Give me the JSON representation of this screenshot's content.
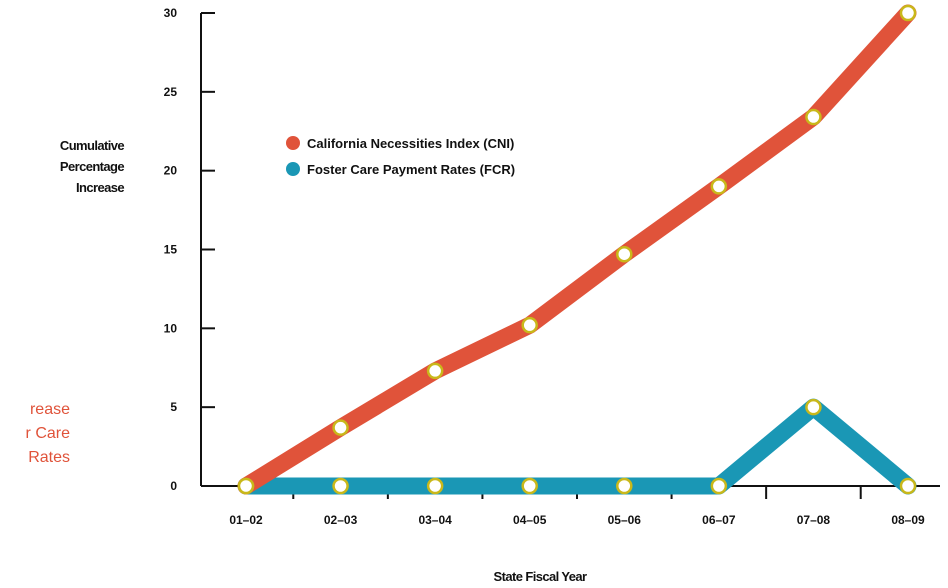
{
  "side_note": {
    "lines": [
      "rease",
      "r Care",
      "Rates"
    ]
  },
  "chart_data": {
    "type": "line",
    "title": "",
    "xlabel": "State Fiscal Year",
    "ylabel_lines": [
      "Cumulative",
      "Percentage",
      "Increase"
    ],
    "categories": [
      "01–02",
      "02–03",
      "03–04",
      "04–05",
      "05–06",
      "06–07",
      "07–08",
      "08–09"
    ],
    "ylim": [
      0,
      30
    ],
    "yticks": [
      0,
      5,
      10,
      15,
      20,
      25,
      30
    ],
    "legend_position": "upper-left-inside",
    "series": [
      {
        "name": "California Necessities Index (CNI)",
        "color": "#e0533a",
        "values": [
          0,
          3.7,
          7.3,
          10.2,
          14.7,
          19,
          23.4,
          30
        ]
      },
      {
        "name": "Foster Care Payment Rates (FCR)",
        "color": "#1a97b5",
        "values": [
          0,
          0,
          0,
          0,
          0,
          0,
          5,
          0
        ]
      }
    ],
    "marker": {
      "fill": "#ffffff",
      "stroke": "#c9b81a"
    }
  }
}
